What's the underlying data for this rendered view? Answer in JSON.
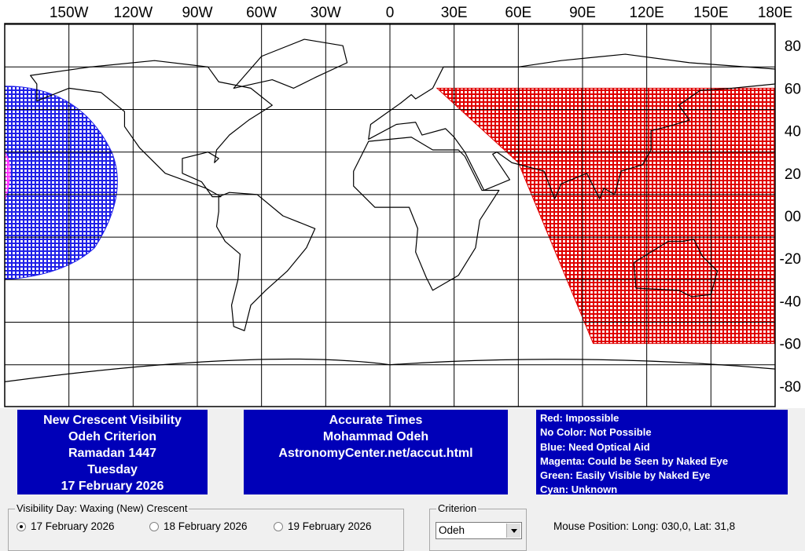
{
  "map": {
    "lon_labels": [
      "150W",
      "120W",
      "90W",
      "60W",
      "30W",
      "0",
      "30E",
      "60E",
      "90E",
      "120E",
      "150E",
      "180E"
    ],
    "lat_labels": [
      "80",
      "60",
      "40",
      "20",
      "00",
      "-20",
      "-40",
      "-60",
      "-80"
    ],
    "colors": {
      "red": "#e00000",
      "blue": "#2020e8",
      "magenta": "#ff30ff",
      "grid": "#000000"
    }
  },
  "title_box": {
    "line1": "New Crescent Visibility",
    "line2": "Odeh Criterion",
    "line3": "Ramadan 1447",
    "line4": "Tuesday",
    "line5": "17 February 2026"
  },
  "times_box": {
    "line1": "Accurate Times",
    "line2": "Mohammad Odeh",
    "line3": "AstronomyCenter.net/accut.html"
  },
  "legend_box": {
    "red": "Red: Impossible",
    "no_color": "No Color: Not Possible",
    "blue": "Blue: Need Optical Aid",
    "magenta": "Magenta: Could be Seen by Naked Eye",
    "green": "Green: Easily Visible by Naked Eye",
    "cyan": "Cyan: Unknown"
  },
  "visibility_day": {
    "title": "Visibility Day: Waxing (New) Crescent",
    "options": [
      {
        "label": "17 February 2026",
        "selected": true
      },
      {
        "label": "18 February 2026",
        "selected": false
      },
      {
        "label": "19 February 2026",
        "selected": false
      }
    ]
  },
  "criterion": {
    "title": "Criterion",
    "selected": "Odeh"
  },
  "mouse_position": "Mouse Position: Long: 030,0, Lat: 31,8"
}
